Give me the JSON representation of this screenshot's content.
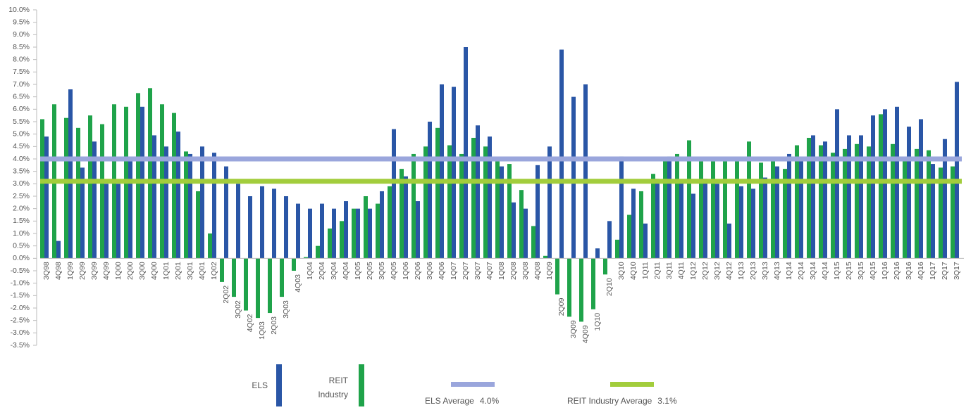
{
  "chart_data": {
    "type": "bar",
    "categories": [
      "3Q98",
      "4Q98",
      "1Q99",
      "2Q99",
      "3Q99",
      "4Q99",
      "1Q00",
      "2Q00",
      "3Q00",
      "4Q00",
      "1Q01",
      "2Q01",
      "3Q01",
      "4Q01",
      "1Q02",
      "2Q02",
      "3Q02",
      "4Q02",
      "1Q03",
      "2Q03",
      "3Q03",
      "4Q03",
      "1Q04",
      "2Q04",
      "3Q04",
      "4Q04",
      "1Q05",
      "2Q05",
      "3Q05",
      "4Q05",
      "1Q06",
      "2Q06",
      "3Q06",
      "4Q06",
      "1Q07",
      "2Q07",
      "3Q07",
      "4Q07",
      "1Q08",
      "2Q08",
      "3Q08",
      "4Q08",
      "1Q09",
      "2Q09",
      "3Q09",
      "4Q09",
      "1Q10",
      "2Q10",
      "3Q10",
      "4Q10",
      "1Q11",
      "2Q11",
      "3Q11",
      "4Q11",
      "1Q12",
      "2Q12",
      "3Q12",
      "4Q12",
      "1Q13",
      "2Q13",
      "3Q13",
      "4Q13",
      "1Q14",
      "2Q14",
      "3Q14",
      "4Q14",
      "1Q15",
      "2Q15",
      "3Q15",
      "4Q15",
      "1Q16",
      "2Q16",
      "3Q16",
      "4Q16",
      "1Q17",
      "2Q17",
      "3Q17"
    ],
    "series": [
      {
        "name": "ELS",
        "color": "#2a56a6",
        "values": [
          4.9,
          0.7,
          6.8,
          3.65,
          4.7,
          3.0,
          3.0,
          3.9,
          6.1,
          4.95,
          4.5,
          5.1,
          4.2,
          4.5,
          4.25,
          3.7,
          3.0,
          2.5,
          2.9,
          2.8,
          2.5,
          2.2,
          2.0,
          2.2,
          2.0,
          2.3,
          2.0,
          2.0,
          2.7,
          5.2,
          3.3,
          2.3,
          5.5,
          7.0,
          6.9,
          8.5,
          5.35,
          4.9,
          3.7,
          2.25,
          2.0,
          3.75,
          4.5,
          8.4,
          6.5,
          7.0,
          0.4,
          1.5,
          4.1,
          2.8,
          1.4,
          3.2,
          4.1,
          3.1,
          2.6,
          3.2,
          3.0,
          1.4,
          2.9,
          2.8,
          3.25,
          3.7,
          4.2,
          4.0,
          4.95,
          4.7,
          6.0,
          4.95,
          4.95,
          5.75,
          6.0,
          6.1,
          5.3,
          5.6,
          3.8,
          4.8,
          7.1
        ]
      },
      {
        "name": "REIT Industry",
        "color": "#1fa34a",
        "values": [
          5.6,
          6.2,
          5.65,
          5.25,
          5.75,
          5.4,
          6.2,
          6.1,
          6.65,
          6.85,
          6.2,
          5.85,
          4.3,
          2.7,
          1.0,
          -0.95,
          -1.55,
          -2.1,
          -2.4,
          -2.2,
          -1.55,
          -0.5,
          0.05,
          0.5,
          1.2,
          1.5,
          2.0,
          2.5,
          2.2,
          2.9,
          3.6,
          4.2,
          4.5,
          5.25,
          4.55,
          4.2,
          4.85,
          4.5,
          3.9,
          3.8,
          2.75,
          1.3,
          0.1,
          -1.45,
          -2.35,
          -2.55,
          -2.05,
          -0.65,
          0.75,
          1.75,
          2.7,
          3.4,
          4.0,
          4.2,
          4.75,
          3.9,
          3.9,
          3.9,
          3.9,
          4.7,
          3.85,
          3.9,
          3.6,
          4.55,
          4.85,
          4.55,
          4.25,
          4.4,
          4.6,
          4.5,
          5.8,
          4.6,
          4.0,
          4.4,
          4.35,
          3.65,
          3.7
        ]
      }
    ],
    "reference_lines": [
      {
        "name": "ELS Average",
        "value": 4.0,
        "value_label": "4.0%",
        "color": "#9aa6dc"
      },
      {
        "name": "REIT Industry Average",
        "value": 3.1,
        "value_label": "3.1%",
        "color": "#a2cd3c"
      }
    ],
    "ylim": [
      -3.5,
      10.0
    ],
    "yticks": [
      {
        "value": 10.0,
        "label": "10.0%"
      },
      {
        "value": 9.5,
        "label": "9.5%"
      },
      {
        "value": 9.0,
        "label": "9.0%"
      },
      {
        "value": 8.5,
        "label": "8.5%"
      },
      {
        "value": 8.0,
        "label": "8.0%"
      },
      {
        "value": 7.5,
        "label": "7.5%"
      },
      {
        "value": 7.0,
        "label": "7.0%"
      },
      {
        "value": 6.5,
        "label": "6.5%"
      },
      {
        "value": 6.0,
        "label": "6.0%"
      },
      {
        "value": 5.5,
        "label": "5.5%"
      },
      {
        "value": 5.0,
        "label": "5.0%"
      },
      {
        "value": 4.5,
        "label": "4.5%"
      },
      {
        "value": 4.0,
        "label": "4.0%"
      },
      {
        "value": 3.5,
        "label": "3.5%"
      },
      {
        "value": 3.0,
        "label": "3.0%"
      },
      {
        "value": 2.5,
        "label": "2.5%"
      },
      {
        "value": 2.0,
        "label": "2.0%"
      },
      {
        "value": 1.5,
        "label": "1.5%"
      },
      {
        "value": 1.0,
        "label": "1.0%"
      },
      {
        "value": 0.5,
        "label": "0.5%"
      },
      {
        "value": 0.0,
        "label": "0.0%"
      },
      {
        "value": -0.5,
        "label": "-0.5%"
      },
      {
        "value": -1.0,
        "label": "-1.0%"
      },
      {
        "value": -1.5,
        "label": "-1.5%"
      },
      {
        "value": -2.0,
        "label": "-2.0%"
      },
      {
        "value": -2.5,
        "label": "-2.5%"
      },
      {
        "value": -3.0,
        "label": "-3.0%"
      },
      {
        "value": -3.5,
        "label": "-3.5%"
      }
    ],
    "grid": false
  }
}
